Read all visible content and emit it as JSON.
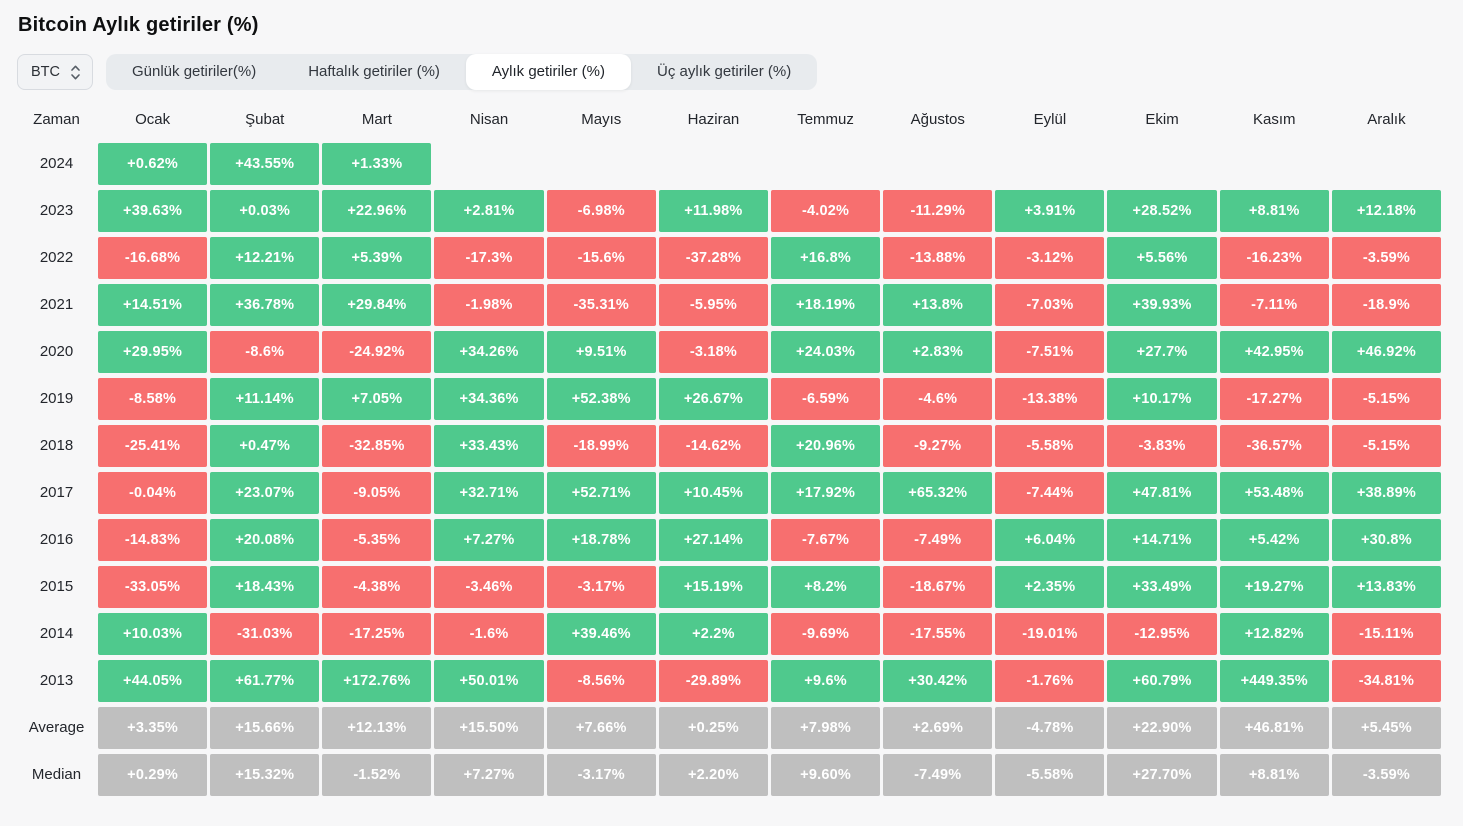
{
  "title": "Bitcoin Aylık getiriler (%)",
  "controls": {
    "symbol": "BTC",
    "symbol_select_icon": "up-down-chevron-icon",
    "tabs": [
      {
        "label": "Günlük getiriler(%)",
        "active": false
      },
      {
        "label": "Haftalık getiriler (%)",
        "active": false
      },
      {
        "label": "Aylık getiriler (%)",
        "active": true
      },
      {
        "label": "Üç aylık getiriler (%)",
        "active": false
      }
    ]
  },
  "colors": {
    "positive": "#4FC98D",
    "negative": "#F76F6F",
    "summary": "#BFBFBF"
  },
  "table": {
    "header": [
      "Zaman",
      "Ocak",
      "Şubat",
      "Mart",
      "Nisan",
      "Mayıs",
      "Haziran",
      "Temmuz",
      "Ağustos",
      "Eylül",
      "Ekim",
      "Kasım",
      "Aralık"
    ],
    "rows": [
      {
        "label": "2024",
        "kind": "year",
        "cells": [
          "+0.62%",
          "+43.55%",
          "+1.33%",
          "",
          "",
          "",
          "",
          "",
          "",
          "",
          "",
          ""
        ]
      },
      {
        "label": "2023",
        "kind": "year",
        "cells": [
          "+39.63%",
          "+0.03%",
          "+22.96%",
          "+2.81%",
          "-6.98%",
          "+11.98%",
          "-4.02%",
          "-11.29%",
          "+3.91%",
          "+28.52%",
          "+8.81%",
          "+12.18%"
        ]
      },
      {
        "label": "2022",
        "kind": "year",
        "cells": [
          "-16.68%",
          "+12.21%",
          "+5.39%",
          "-17.3%",
          "-15.6%",
          "-37.28%",
          "+16.8%",
          "-13.88%",
          "-3.12%",
          "+5.56%",
          "-16.23%",
          "-3.59%"
        ]
      },
      {
        "label": "2021",
        "kind": "year",
        "cells": [
          "+14.51%",
          "+36.78%",
          "+29.84%",
          "-1.98%",
          "-35.31%",
          "-5.95%",
          "+18.19%",
          "+13.8%",
          "-7.03%",
          "+39.93%",
          "-7.11%",
          "-18.9%"
        ]
      },
      {
        "label": "2020",
        "kind": "year",
        "cells": [
          "+29.95%",
          "-8.6%",
          "-24.92%",
          "+34.26%",
          "+9.51%",
          "-3.18%",
          "+24.03%",
          "+2.83%",
          "-7.51%",
          "+27.7%",
          "+42.95%",
          "+46.92%"
        ]
      },
      {
        "label": "2019",
        "kind": "year",
        "cells": [
          "-8.58%",
          "+11.14%",
          "+7.05%",
          "+34.36%",
          "+52.38%",
          "+26.67%",
          "-6.59%",
          "-4.6%",
          "-13.38%",
          "+10.17%",
          "-17.27%",
          "-5.15%"
        ]
      },
      {
        "label": "2018",
        "kind": "year",
        "cells": [
          "-25.41%",
          "+0.47%",
          "-32.85%",
          "+33.43%",
          "-18.99%",
          "-14.62%",
          "+20.96%",
          "-9.27%",
          "-5.58%",
          "-3.83%",
          "-36.57%",
          "-5.15%"
        ]
      },
      {
        "label": "2017",
        "kind": "year",
        "cells": [
          "-0.04%",
          "+23.07%",
          "-9.05%",
          "+32.71%",
          "+52.71%",
          "+10.45%",
          "+17.92%",
          "+65.32%",
          "-7.44%",
          "+47.81%",
          "+53.48%",
          "+38.89%"
        ]
      },
      {
        "label": "2016",
        "kind": "year",
        "cells": [
          "-14.83%",
          "+20.08%",
          "-5.35%",
          "+7.27%",
          "+18.78%",
          "+27.14%",
          "-7.67%",
          "-7.49%",
          "+6.04%",
          "+14.71%",
          "+5.42%",
          "+30.8%"
        ]
      },
      {
        "label": "2015",
        "kind": "year",
        "cells": [
          "-33.05%",
          "+18.43%",
          "-4.38%",
          "-3.46%",
          "-3.17%",
          "+15.19%",
          "+8.2%",
          "-18.67%",
          "+2.35%",
          "+33.49%",
          "+19.27%",
          "+13.83%"
        ]
      },
      {
        "label": "2014",
        "kind": "year",
        "cells": [
          "+10.03%",
          "-31.03%",
          "-17.25%",
          "-1.6%",
          "+39.46%",
          "+2.2%",
          "-9.69%",
          "-17.55%",
          "-19.01%",
          "-12.95%",
          "+12.82%",
          "-15.11%"
        ]
      },
      {
        "label": "2013",
        "kind": "year",
        "cells": [
          "+44.05%",
          "+61.77%",
          "+172.76%",
          "+50.01%",
          "-8.56%",
          "-29.89%",
          "+9.6%",
          "+30.42%",
          "-1.76%",
          "+60.79%",
          "+449.35%",
          "-34.81%"
        ]
      },
      {
        "label": "Average",
        "kind": "summary",
        "cells": [
          "+3.35%",
          "+15.66%",
          "+12.13%",
          "+15.50%",
          "+7.66%",
          "+0.25%",
          "+7.98%",
          "+2.69%",
          "-4.78%",
          "+22.90%",
          "+46.81%",
          "+5.45%"
        ]
      },
      {
        "label": "Median",
        "kind": "summary",
        "cells": [
          "+0.29%",
          "+15.32%",
          "-1.52%",
          "+7.27%",
          "-3.17%",
          "+2.20%",
          "+9.60%",
          "-7.49%",
          "-5.58%",
          "+27.70%",
          "+8.81%",
          "-3.59%"
        ]
      }
    ]
  }
}
